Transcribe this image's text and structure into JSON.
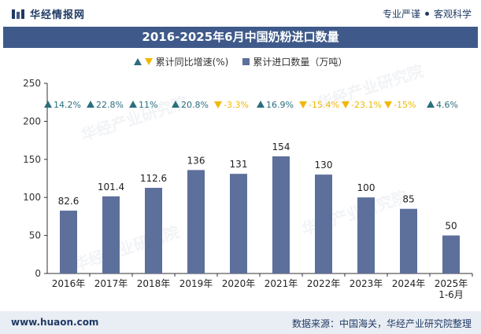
{
  "header": {
    "brand": "华经情报网",
    "tagline_left": "专业严谨",
    "tagline_right": "客观科学"
  },
  "watermark": "华经产业研究院",
  "chart_data": {
    "type": "bar",
    "title": "2016-2025年6月中国奶粉进口数量",
    "categories": [
      "2016年",
      "2017年",
      "2018年",
      "2019年",
      "2020年",
      "2021年",
      "2022年",
      "2023年",
      "2024年",
      "2025年\n1-6月"
    ],
    "series": [
      {
        "name": "累计进口数量（万吨）",
        "values": [
          82.6,
          101.4,
          112.6,
          136,
          131,
          154,
          130,
          100,
          85,
          50
        ],
        "labels": [
          "82.6",
          "101.4",
          "112.6",
          "136",
          "131",
          "154",
          "130",
          "100",
          "85",
          "50"
        ],
        "color": "#5d6f9b"
      },
      {
        "name": "累计同比增速(%)",
        "values": [
          14.2,
          22.8,
          11,
          20.8,
          -3.3,
          16.9,
          -15.4,
          -23.1,
          -15,
          4.6
        ],
        "labels": [
          "14.2%",
          "22.8%",
          "11%",
          "20.8%",
          "-3.3%",
          "16.9%",
          "-15.4%",
          "-23.1%",
          "-15%",
          "4.6%"
        ],
        "up_color": "#2b6e80",
        "down_color": "#f0b800"
      }
    ],
    "yticks": [
      "0",
      "50",
      "100",
      "150",
      "200",
      "250"
    ],
    "ylim": [
      0,
      250
    ],
    "legend_position": "top-center"
  },
  "footer": {
    "website": "www.huaon.com",
    "source": "数据来源：中国海关，华经产业研究院整理"
  }
}
